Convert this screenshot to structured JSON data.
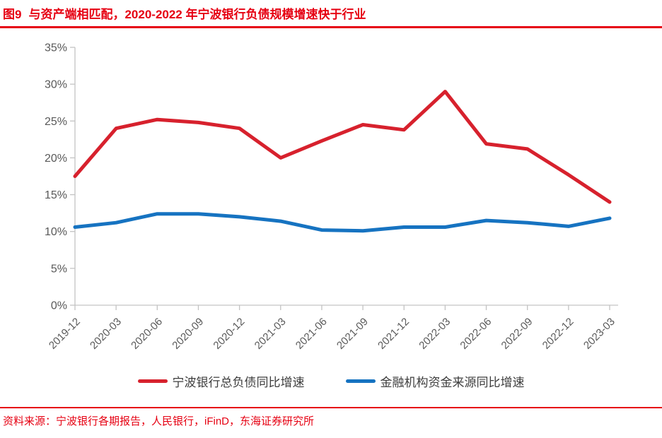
{
  "figure": {
    "number": "图9",
    "title": "与资产端相匹配，2020-2022 年宁波银行负债规模增速快于行业",
    "source_note": "资料来源：宁波银行各期报告，人民银行，iFinD，东海证券研究所"
  },
  "colors": {
    "accent_red": "#e60012",
    "axis_line": "#c3c3c3",
    "tick_label": "#595959"
  },
  "chart_data": {
    "type": "line",
    "categories": [
      "2019-12",
      "2020-03",
      "2020-06",
      "2020-09",
      "2020-12",
      "2021-03",
      "2021-06",
      "2021-09",
      "2021-12",
      "2022-03",
      "2022-06",
      "2022-09",
      "2022-12",
      "2023-03"
    ],
    "series": [
      {
        "name": "宁波银行总负债同比增速",
        "color": "#d7212d",
        "values": [
          17.5,
          24.0,
          25.2,
          24.8,
          24.0,
          20.0,
          22.3,
          24.5,
          23.8,
          29.0,
          21.9,
          21.2,
          17.7,
          14.0
        ]
      },
      {
        "name": "金融机构资金来源同比增速",
        "color": "#1673c1",
        "values": [
          10.6,
          11.2,
          12.4,
          12.4,
          12.0,
          11.4,
          10.2,
          10.1,
          10.6,
          10.6,
          11.5,
          11.2,
          10.7,
          11.8
        ]
      }
    ],
    "title": "",
    "xlabel": "",
    "ylabel": "",
    "ylim": [
      0,
      35
    ],
    "y_tick_step": 5,
    "y_tick_labels": [
      "0%",
      "5%",
      "10%",
      "15%",
      "20%",
      "25%",
      "30%",
      "35%"
    ],
    "grid": false,
    "legend_position": "bottom"
  }
}
